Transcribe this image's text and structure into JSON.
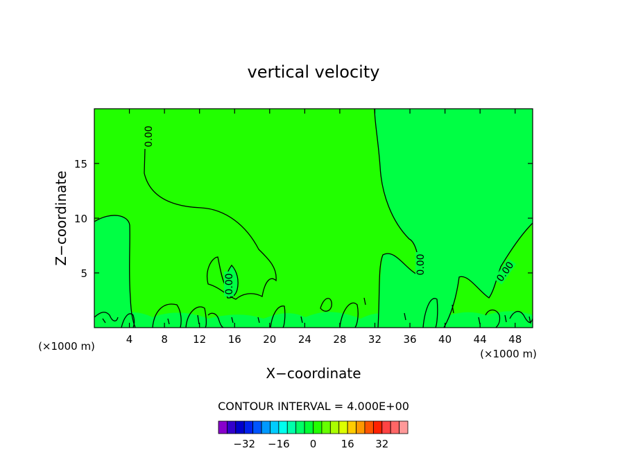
{
  "chart_data": {
    "type": "heatmap",
    "title": "vertical velocity",
    "xlabel": "X−coordinate",
    "ylabel": "Z−coordinate",
    "x_unit_left": "(×1000 m)",
    "x_unit_right": "(×1000 m)",
    "xlim": [
      0,
      50
    ],
    "ylim": [
      0,
      20
    ],
    "xticks": [
      4,
      8,
      12,
      16,
      20,
      24,
      28,
      32,
      36,
      40,
      44,
      48
    ],
    "yticks": [
      5,
      10,
      15
    ],
    "contour_interval_text": "CONTOUR INTERVAL = 4.000E+00",
    "contour_labels": [
      "0.00",
      "0.00",
      "0.00",
      "0.00"
    ],
    "regions": [
      {
        "name": "positive",
        "color": "#22ff00"
      },
      {
        "name": "near-zero",
        "color": "#00ff44"
      }
    ],
    "colorbar": {
      "colors": [
        "#8800cc",
        "#3300cc",
        "#0000cc",
        "#0022ee",
        "#0055ff",
        "#0099ff",
        "#00ccff",
        "#00ffee",
        "#00ffaa",
        "#00ff66",
        "#00ff33",
        "#22ff00",
        "#66ff00",
        "#aaff00",
        "#ddff00",
        "#ffcc00",
        "#ff9900",
        "#ff5500",
        "#ff2200",
        "#ff4444",
        "#ff6666",
        "#ff9999"
      ],
      "tick_values": [
        -32,
        -16,
        0,
        16,
        32
      ],
      "tick_labels": [
        "−32",
        "−16",
        "0",
        "16",
        "32"
      ]
    }
  }
}
